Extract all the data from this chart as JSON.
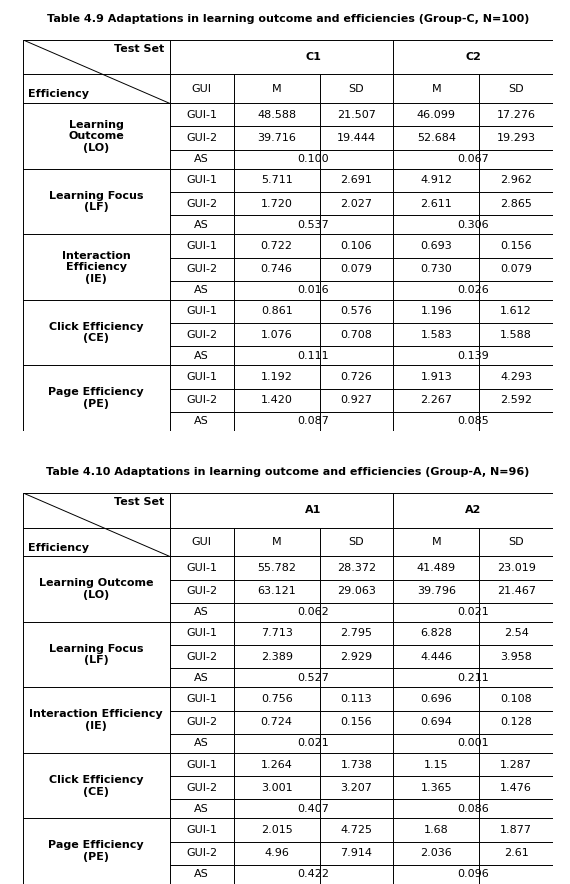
{
  "title1": "Table 4.9 Adaptations in learning outcome and efficiencies (Group-C, N=100)",
  "title2": "Table 4.10 Adaptations in learning outcome and efficiencies (Group-A, N=96)",
  "table1": {
    "group_col": "C1",
    "group_col2": "C2",
    "row_groups": [
      {
        "label": "Learning\nOutcome\n(LO)",
        "rows": [
          [
            "GUI-1",
            "48.588",
            "21.507",
            "46.099",
            "17.276"
          ],
          [
            "GUI-2",
            "39.716",
            "19.444",
            "52.684",
            "19.293"
          ],
          [
            "AS",
            "0.100",
            "",
            "0.067",
            ""
          ]
        ]
      },
      {
        "label": "Learning Focus\n(LF)",
        "rows": [
          [
            "GUI-1",
            "5.711",
            "2.691",
            "4.912",
            "2.962"
          ],
          [
            "GUI-2",
            "1.720",
            "2.027",
            "2.611",
            "2.865"
          ],
          [
            "AS",
            "0.537",
            "",
            "0.306",
            ""
          ]
        ]
      },
      {
        "label": "Interaction\nEfficiency\n(IE)",
        "rows": [
          [
            "GUI-1",
            "0.722",
            "0.106",
            "0.693",
            "0.156"
          ],
          [
            "GUI-2",
            "0.746",
            "0.079",
            "0.730",
            "0.079"
          ],
          [
            "AS",
            "0.016",
            "",
            "0.026",
            ""
          ]
        ]
      },
      {
        "label": "Click Efficiency\n(CE)",
        "rows": [
          [
            "GUI-1",
            "0.861",
            "0.576",
            "1.196",
            "1.612"
          ],
          [
            "GUI-2",
            "1.076",
            "0.708",
            "1.583",
            "1.588"
          ],
          [
            "AS",
            "0.111",
            "",
            "0.139",
            ""
          ]
        ]
      },
      {
        "label": "Page Efficiency\n(PE)",
        "rows": [
          [
            "GUI-1",
            "1.192",
            "0.726",
            "1.913",
            "4.293"
          ],
          [
            "GUI-2",
            "1.420",
            "0.927",
            "2.267",
            "2.592"
          ],
          [
            "AS",
            "0.087",
            "",
            "0.085",
            ""
          ]
        ]
      }
    ]
  },
  "table2": {
    "group_col": "A1",
    "group_col2": "A2",
    "row_groups": [
      {
        "label": "Learning Outcome\n(LO)",
        "rows": [
          [
            "GUI-1",
            "55.782",
            "28.372",
            "41.489",
            "23.019"
          ],
          [
            "GUI-2",
            "63.121",
            "29.063",
            "39.796",
            "21.467"
          ],
          [
            "AS",
            "0.062",
            "",
            "0.021",
            ""
          ]
        ]
      },
      {
        "label": "Learning Focus\n(LF)",
        "rows": [
          [
            "GUI-1",
            "7.713",
            "2.795",
            "6.828",
            "2.54"
          ],
          [
            "GUI-2",
            "2.389",
            "2.929",
            "4.446",
            "3.958"
          ],
          [
            "AS",
            "0.527",
            "",
            "0.211",
            ""
          ]
        ]
      },
      {
        "label": "Interaction Efficiency\n(IE)",
        "rows": [
          [
            "GUI-1",
            "0.756",
            "0.113",
            "0.696",
            "0.108"
          ],
          [
            "GUI-2",
            "0.724",
            "0.156",
            "0.694",
            "0.128"
          ],
          [
            "AS",
            "0.021",
            "",
            "0.001",
            ""
          ]
        ]
      },
      {
        "label": "Click Efficiency\n(CE)",
        "rows": [
          [
            "GUI-1",
            "1.264",
            "1.738",
            "1.15",
            "1.287"
          ],
          [
            "GUI-2",
            "3.001",
            "3.207",
            "1.365",
            "1.476"
          ],
          [
            "AS",
            "0.407",
            "",
            "0.086",
            ""
          ]
        ]
      },
      {
        "label": "Page Efficiency\n(PE)",
        "rows": [
          [
            "GUI-1",
            "2.015",
            "4.725",
            "1.68",
            "1.877"
          ],
          [
            "GUI-2",
            "4.96",
            "7.914",
            "2.036",
            "2.61"
          ],
          [
            "AS",
            "0.422",
            "",
            "0.096",
            ""
          ]
        ]
      }
    ]
  },
  "bg_color": "#ffffff",
  "border_color": "#000000",
  "text_color": "#000000",
  "title_fontsize": 8.0,
  "cell_fontsize": 8.0
}
